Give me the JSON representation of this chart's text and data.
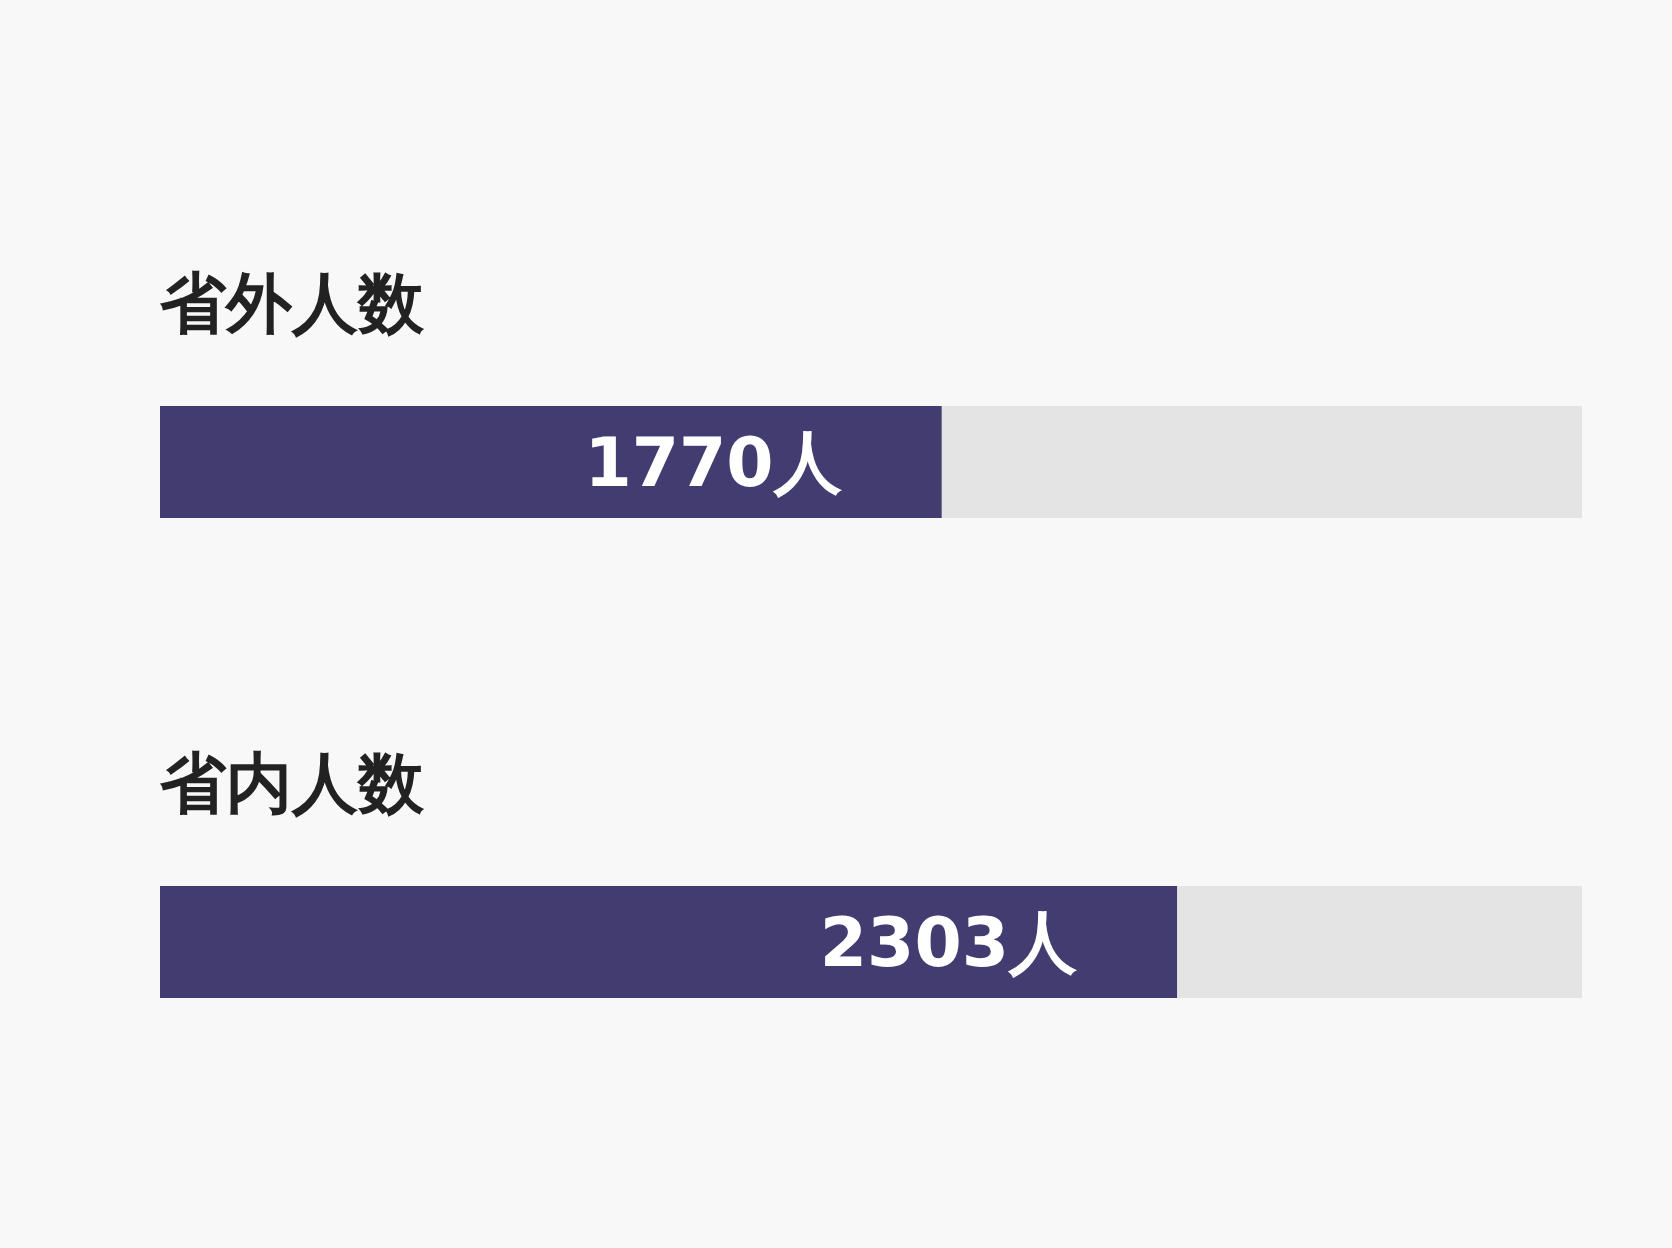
{
  "chart_data": {
    "type": "bar",
    "orientation": "horizontal",
    "categories": [
      "省外人数",
      "省内人数"
    ],
    "values": [
      1770,
      2303
    ],
    "value_labels": [
      "1770人",
      "2303人"
    ],
    "color": "#433c70",
    "xlim": [
      0,
      3220
    ]
  }
}
